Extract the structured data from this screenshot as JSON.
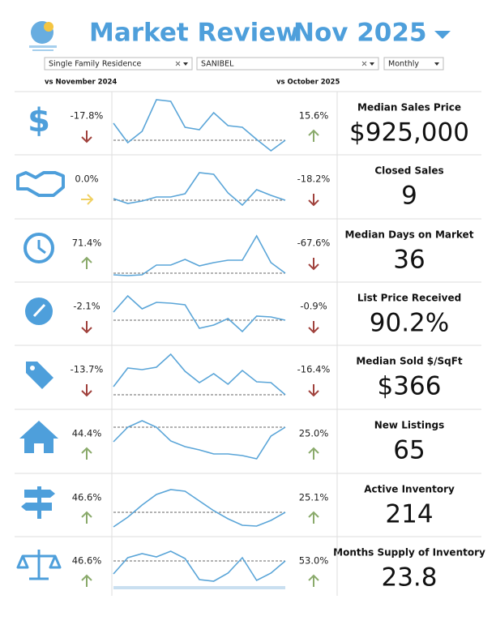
{
  "header": {
    "title": "Market Review",
    "period": "Nov 2025"
  },
  "filters": [
    "Single Family Residence",
    "SANIBEL",
    "Monthly"
  ],
  "compare": {
    "yoy": "vs November 2024",
    "mom": "vs October 2025"
  },
  "metrics": [
    {
      "label": "Median Sales Price",
      "value": "$925,000",
      "yoy": "-17.8%",
      "yoy_dir": "down",
      "mom": "15.6%",
      "mom_dir": "up",
      "icon": "dollar",
      "sparkline": [
        39,
        15,
        29,
        68,
        66,
        34,
        31,
        52,
        36,
        34,
        19,
        5,
        18
      ]
    },
    {
      "label": "Closed Sales",
      "value": "9",
      "yoy": "0.0%",
      "yoy_dir": "flat",
      "mom": "-18.2%",
      "mom_dir": "down",
      "icon": "handshake",
      "sparkline": [
        25,
        19,
        22,
        27,
        27,
        31,
        57,
        55,
        32,
        17,
        36,
        29,
        23
      ]
    },
    {
      "label": "Median Days on Market",
      "value": "36",
      "yoy": "71.4%",
      "yoy_dir": "up",
      "mom": "-67.6%",
      "mom_dir": "down",
      "icon": "clock",
      "sparkline": [
        9,
        8,
        9,
        21,
        21,
        28,
        20,
        24,
        27,
        27,
        57,
        24,
        11
      ]
    },
    {
      "label": "List Price Received",
      "value": "90.2%",
      "yoy": "-2.1%",
      "yoy_dir": "down",
      "mom": "-0.9%",
      "mom_dir": "down",
      "icon": "gauge",
      "sparkline": [
        41,
        61,
        45,
        53,
        52,
        50,
        21,
        25,
        33,
        17,
        36,
        35,
        31
      ]
    },
    {
      "label": "Median Sold $/SqFt",
      "value": "$366",
      "yoy": "-13.7%",
      "yoy_dir": "down",
      "mom": "-16.4%",
      "mom_dir": "down",
      "icon": "tag",
      "sparkline": [
        28,
        51,
        49,
        52,
        68,
        47,
        33,
        44,
        31,
        48,
        34,
        33,
        18
      ]
    },
    {
      "label": "New Listings",
      "value": "65",
      "yoy": "44.4%",
      "yoy_dir": "up",
      "mom": "25.0%",
      "mom_dir": "up",
      "icon": "house",
      "sparkline": [
        39,
        57,
        65,
        57,
        40,
        33,
        29,
        24,
        24,
        22,
        18,
        46,
        57
      ]
    },
    {
      "label": "Active Inventory",
      "value": "214",
      "yoy": "46.6%",
      "yoy_dir": "up",
      "mom": "25.1%",
      "mom_dir": "up",
      "icon": "sign",
      "sparkline": [
        12,
        24,
        39,
        52,
        58,
        56,
        44,
        32,
        22,
        14,
        13,
        20,
        30
      ]
    },
    {
      "label": "Months Supply of Inventory",
      "value": "23.8",
      "yoy": "46.6%",
      "yoy_dir": "up",
      "mom": "53.0%",
      "mom_dir": "up",
      "icon": "scale",
      "sparkline": [
        27,
        47,
        52,
        48,
        55,
        46,
        20,
        18,
        28,
        47,
        19,
        28,
        43
      ]
    }
  ]
}
